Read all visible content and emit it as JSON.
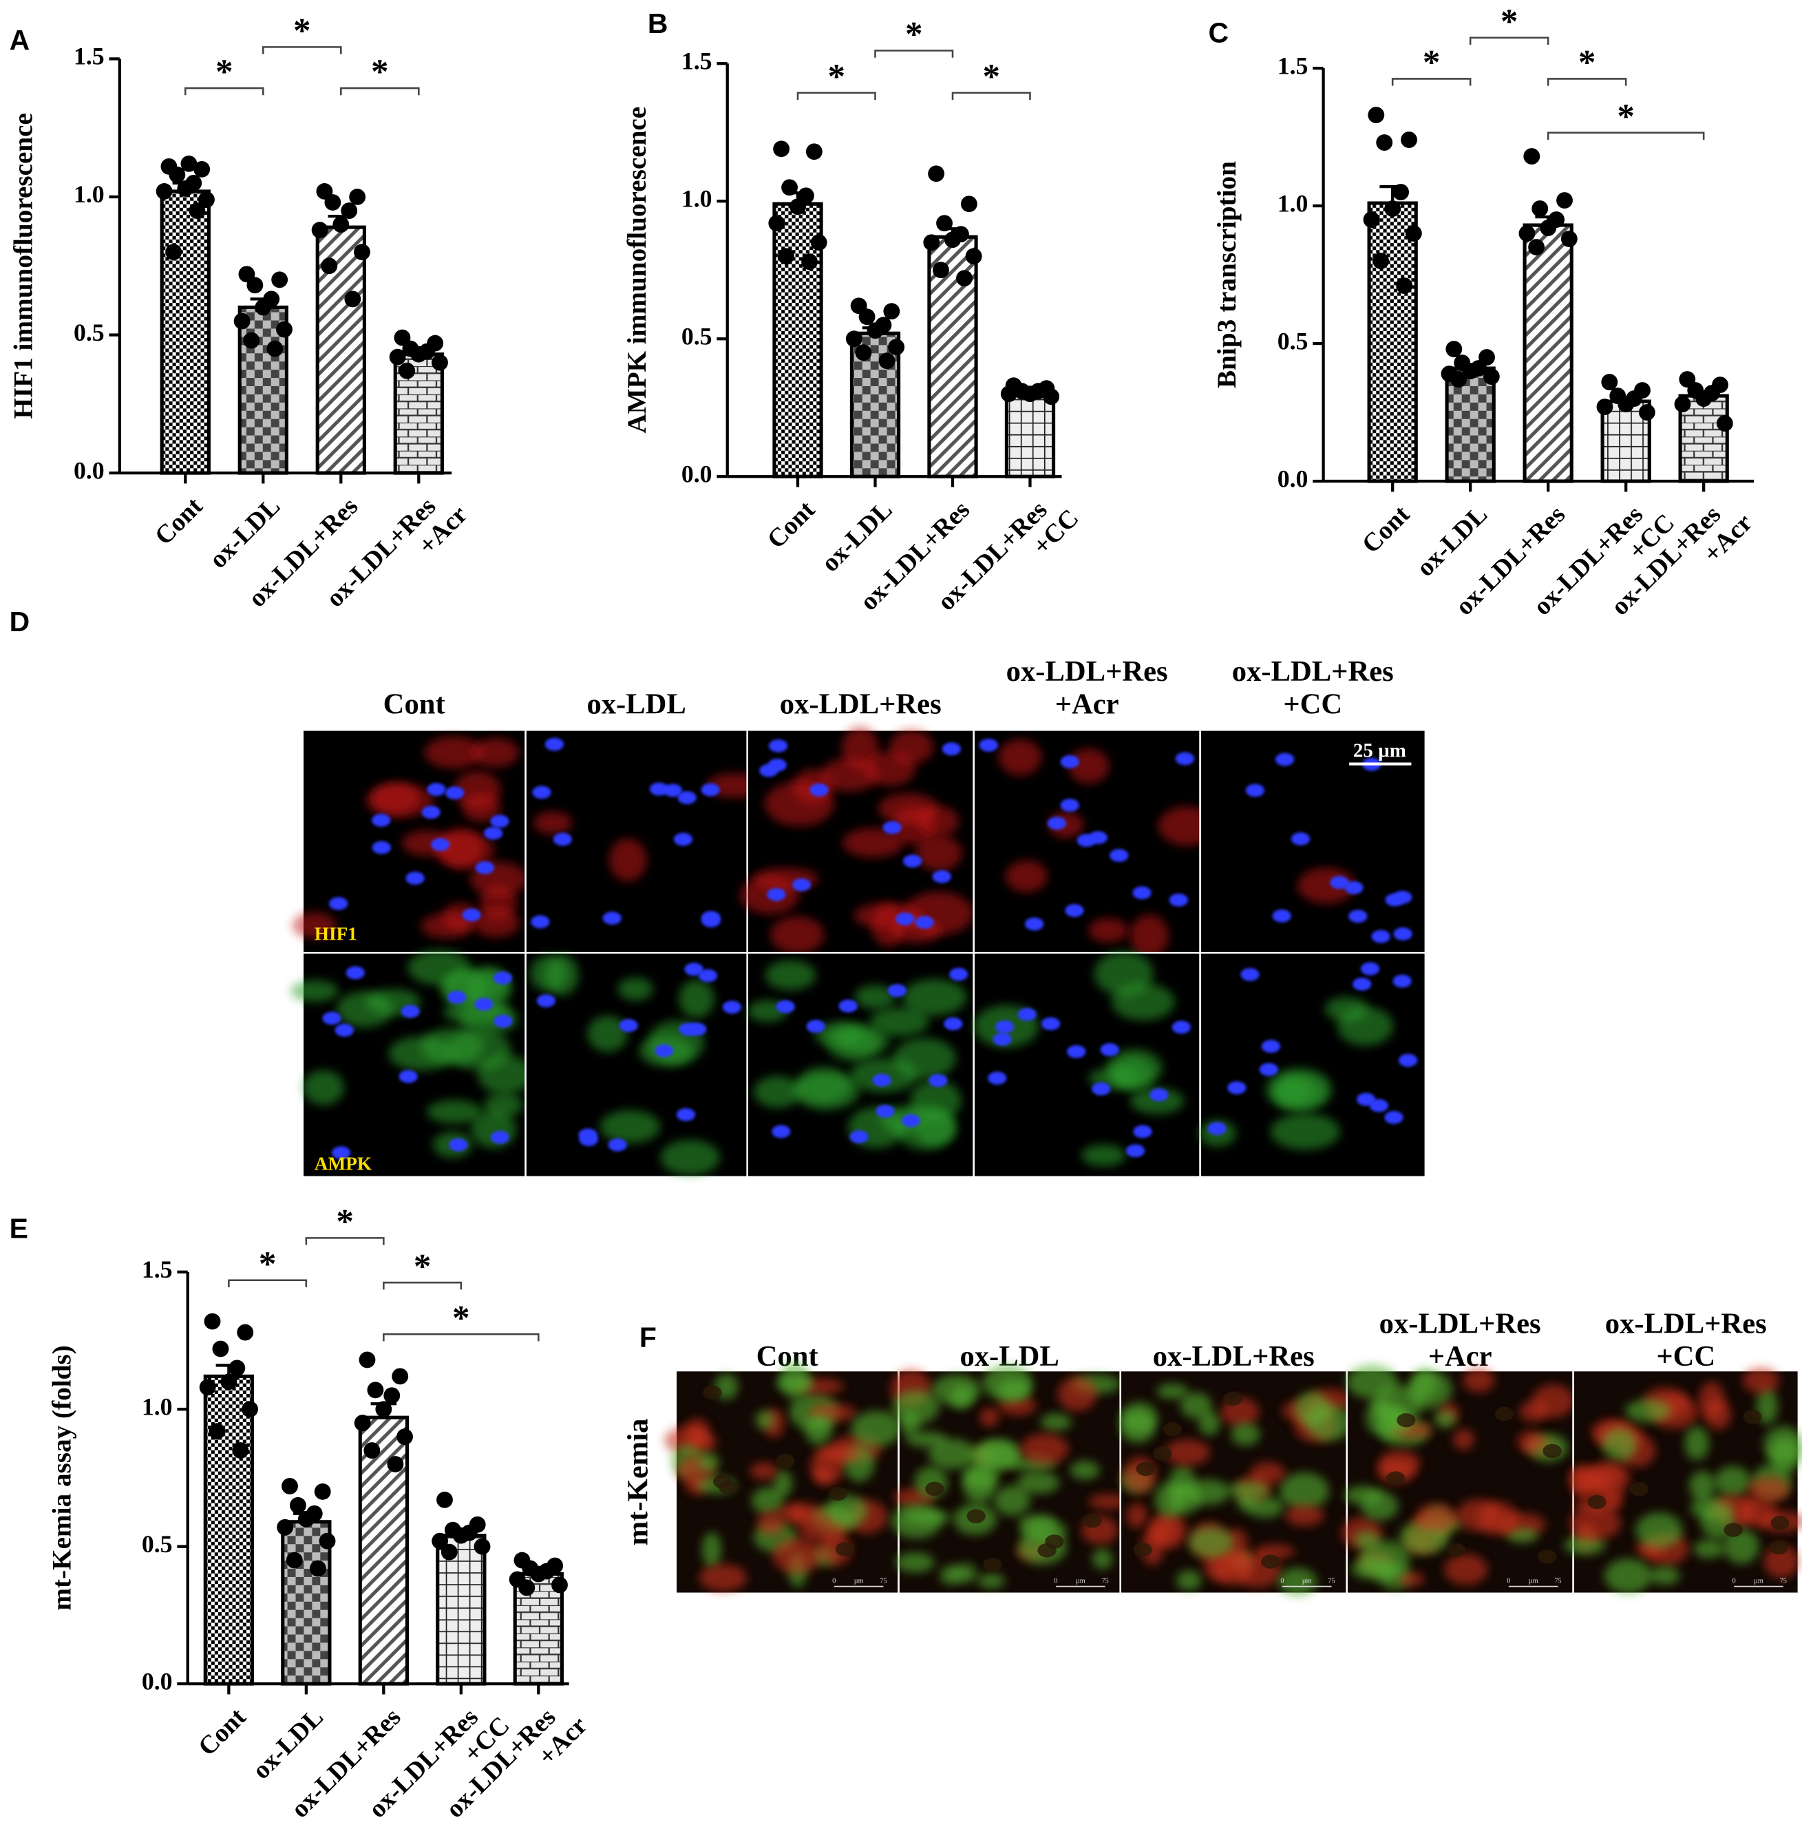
{
  "chart_data": [
    {
      "type": "bar",
      "label": "A",
      "ylabel": "HIF1 immunofluorescence",
      "categories": [
        [
          "Cont"
        ],
        [
          "ox-LDL"
        ],
        [
          "ox-LDL+Res"
        ],
        [
          "ox-LDL+Res",
          "+Acr"
        ]
      ],
      "values": [
        1.02,
        0.6,
        0.89,
        0.43
      ],
      "errors": [
        0.03,
        0.03,
        0.04,
        0.01
      ],
      "points": [
        [
          1.11,
          1.1,
          1.08,
          1.05,
          1.03,
          1.02,
          0.99,
          0.8,
          0.95,
          1.12
        ],
        [
          0.72,
          0.7,
          0.68,
          0.63,
          0.6,
          0.55,
          0.52,
          0.48,
          0.45
        ],
        [
          1.02,
          1.0,
          0.98,
          0.95,
          0.9,
          0.88,
          0.8,
          0.75,
          0.63
        ],
        [
          0.49,
          0.47,
          0.45,
          0.44,
          0.43,
          0.42,
          0.4,
          0.37
        ]
      ],
      "patterns": [
        "checker-fine",
        "checker-coarse",
        "hatch",
        "brick"
      ],
      "color": "#000000",
      "ylim": [
        0,
        1.5
      ],
      "yticks": [
        {
          "value": 0,
          "label": "0.0"
        },
        {
          "value": 0.5,
          "label": "0.5"
        },
        {
          "value": 1,
          "label": "1.0"
        },
        {
          "value": 1.5,
          "label": "1.5"
        }
      ],
      "significance": [
        {
          "from": 0,
          "to": 1,
          "label": "*"
        },
        {
          "from": 1,
          "to": 2,
          "label": "*"
        },
        {
          "from": 2,
          "to": 3,
          "label": "*"
        }
      ]
    },
    {
      "type": "bar",
      "label": "B",
      "ylabel": "AMPK immunofluorescence",
      "categories": [
        [
          "Cont"
        ],
        [
          "ox-LDL"
        ],
        [
          "ox-LDL+Res"
        ],
        [
          "ox-LDL+Res",
          "+CC"
        ]
      ],
      "values": [
        0.99,
        0.52,
        0.87,
        0.3
      ],
      "errors": [
        0.04,
        0.02,
        0.03,
        0.01
      ],
      "points": [
        [
          1.19,
          1.18,
          1.05,
          1.02,
          0.98,
          0.92,
          0.85,
          0.8,
          0.78
        ],
        [
          0.62,
          0.6,
          0.58,
          0.55,
          0.53,
          0.5,
          0.47,
          0.45,
          0.42
        ],
        [
          1.1,
          0.99,
          0.92,
          0.88,
          0.86,
          0.85,
          0.8,
          0.75,
          0.72
        ],
        [
          0.33,
          0.32,
          0.31,
          0.31,
          0.3,
          0.3,
          0.29
        ]
      ],
      "patterns": [
        "checker-fine",
        "checker-coarse",
        "hatch",
        "grid"
      ],
      "color": "#000000",
      "ylim": [
        0,
        1.5
      ],
      "yticks": [
        {
          "value": 0,
          "label": "0.0"
        },
        {
          "value": 0.5,
          "label": "0.5"
        },
        {
          "value": 1,
          "label": "1.0"
        },
        {
          "value": 1.5,
          "label": "1.5"
        }
      ],
      "significance": [
        {
          "from": 0,
          "to": 1,
          "label": "*"
        },
        {
          "from": 1,
          "to": 2,
          "label": "*"
        },
        {
          "from": 2,
          "to": 3,
          "label": "*"
        }
      ]
    },
    {
      "type": "bar",
      "label": "C",
      "ylabel": "Bnip3 transcription",
      "categories": [
        [
          "Cont"
        ],
        [
          "ox-LDL"
        ],
        [
          "ox-LDL+Res"
        ],
        [
          "ox-LDL+Res",
          "+CC"
        ],
        [
          "ox-LDL+Res",
          "+Acr"
        ]
      ],
      "values": [
        1.01,
        0.41,
        0.93,
        0.29,
        0.31
      ],
      "errors": [
        0.06,
        0.01,
        0.03,
        0.01,
        0.01
      ],
      "points": [
        [
          1.33,
          1.24,
          1.23,
          1.05,
          0.99,
          0.95,
          0.9,
          0.8,
          0.71
        ],
        [
          0.48,
          0.45,
          0.43,
          0.41,
          0.4,
          0.39,
          0.38,
          0.37
        ],
        [
          1.18,
          1.02,
          0.99,
          0.95,
          0.92,
          0.9,
          0.88,
          0.85
        ],
        [
          0.36,
          0.33,
          0.31,
          0.3,
          0.28,
          0.27,
          0.25
        ],
        [
          0.37,
          0.35,
          0.33,
          0.32,
          0.3,
          0.28,
          0.21
        ]
      ],
      "patterns": [
        "checker-fine",
        "checker-coarse",
        "hatch",
        "grid",
        "brick"
      ],
      "color": "#000000",
      "ylim": [
        0,
        1.5
      ],
      "yticks": [
        {
          "value": 0,
          "label": "0.0"
        },
        {
          "value": 0.5,
          "label": "0.5"
        },
        {
          "value": 1,
          "label": "1.0"
        },
        {
          "value": 1.5,
          "label": "1.5"
        }
      ],
      "significance": [
        {
          "from": 0,
          "to": 1,
          "label": "*"
        },
        {
          "from": 1,
          "to": 2,
          "label": "*"
        },
        {
          "from": 2,
          "to": 3,
          "label": "*"
        },
        {
          "from": 2,
          "to": 4,
          "label": "*"
        }
      ]
    },
    {
      "type": "bar",
      "label": "E",
      "ylabel": "mt-Kemia assay (folds)",
      "categories": [
        [
          "Cont"
        ],
        [
          "ox-LDL"
        ],
        [
          "ox-LDL+Res"
        ],
        [
          "ox-LDL+Res",
          "+CC"
        ],
        [
          "ox-LDL+Res",
          "+Acr"
        ]
      ],
      "values": [
        1.12,
        0.59,
        0.97,
        0.54,
        0.4
      ],
      "errors": [
        0.04,
        0.03,
        0.05,
        0.02,
        0.01
      ],
      "points": [
        [
          1.32,
          1.28,
          1.22,
          1.15,
          1.1,
          1.08,
          1.0,
          0.92,
          0.85
        ],
        [
          0.72,
          0.7,
          0.65,
          0.62,
          0.6,
          0.57,
          0.52,
          0.45,
          0.42
        ],
        [
          1.18,
          1.12,
          1.07,
          1.05,
          1.0,
          0.95,
          0.9,
          0.85,
          0.8
        ],
        [
          0.67,
          0.58,
          0.56,
          0.55,
          0.54,
          0.52,
          0.5,
          0.48
        ],
        [
          0.45,
          0.43,
          0.42,
          0.41,
          0.4,
          0.38,
          0.36,
          0.35
        ]
      ],
      "patterns": [
        "checker-fine",
        "checker-coarse",
        "hatch",
        "grid",
        "brick"
      ],
      "color": "#000000",
      "ylim": [
        0,
        1.5
      ],
      "yticks": [
        {
          "value": 0,
          "label": "0.0"
        },
        {
          "value": 0.5,
          "label": "0.5"
        },
        {
          "value": 1,
          "label": "1.0"
        },
        {
          "value": 1.5,
          "label": "1.5"
        }
      ],
      "significance": [
        {
          "from": 0,
          "to": 1,
          "label": "*"
        },
        {
          "from": 1,
          "to": 2,
          "label": "*"
        },
        {
          "from": 2,
          "to": 3,
          "label": "*"
        },
        {
          "from": 2,
          "to": 4,
          "label": "*"
        }
      ]
    }
  ],
  "figure_d": {
    "label": "D",
    "columns": [
      [
        "Cont"
      ],
      [
        "ox-LDL"
      ],
      [
        "ox-LDL+Res"
      ],
      [
        "ox-LDL+Res",
        "+Acr"
      ],
      [
        "ox-LDL+Res",
        "+CC"
      ]
    ],
    "rows": [
      "HIF1",
      "AMPK"
    ],
    "scale_bar": "25 µm"
  },
  "figure_f": {
    "label": "F",
    "columns": [
      [
        "Cont"
      ],
      [
        "ox-LDL"
      ],
      [
        "ox-LDL+Res"
      ],
      [
        "ox-LDL+Res",
        "+Acr"
      ],
      [
        "ox-LDL+Res",
        "+CC"
      ]
    ],
    "side_label": "mt-Kemia",
    "scale_labels": [
      "0",
      "µm",
      "75"
    ]
  }
}
